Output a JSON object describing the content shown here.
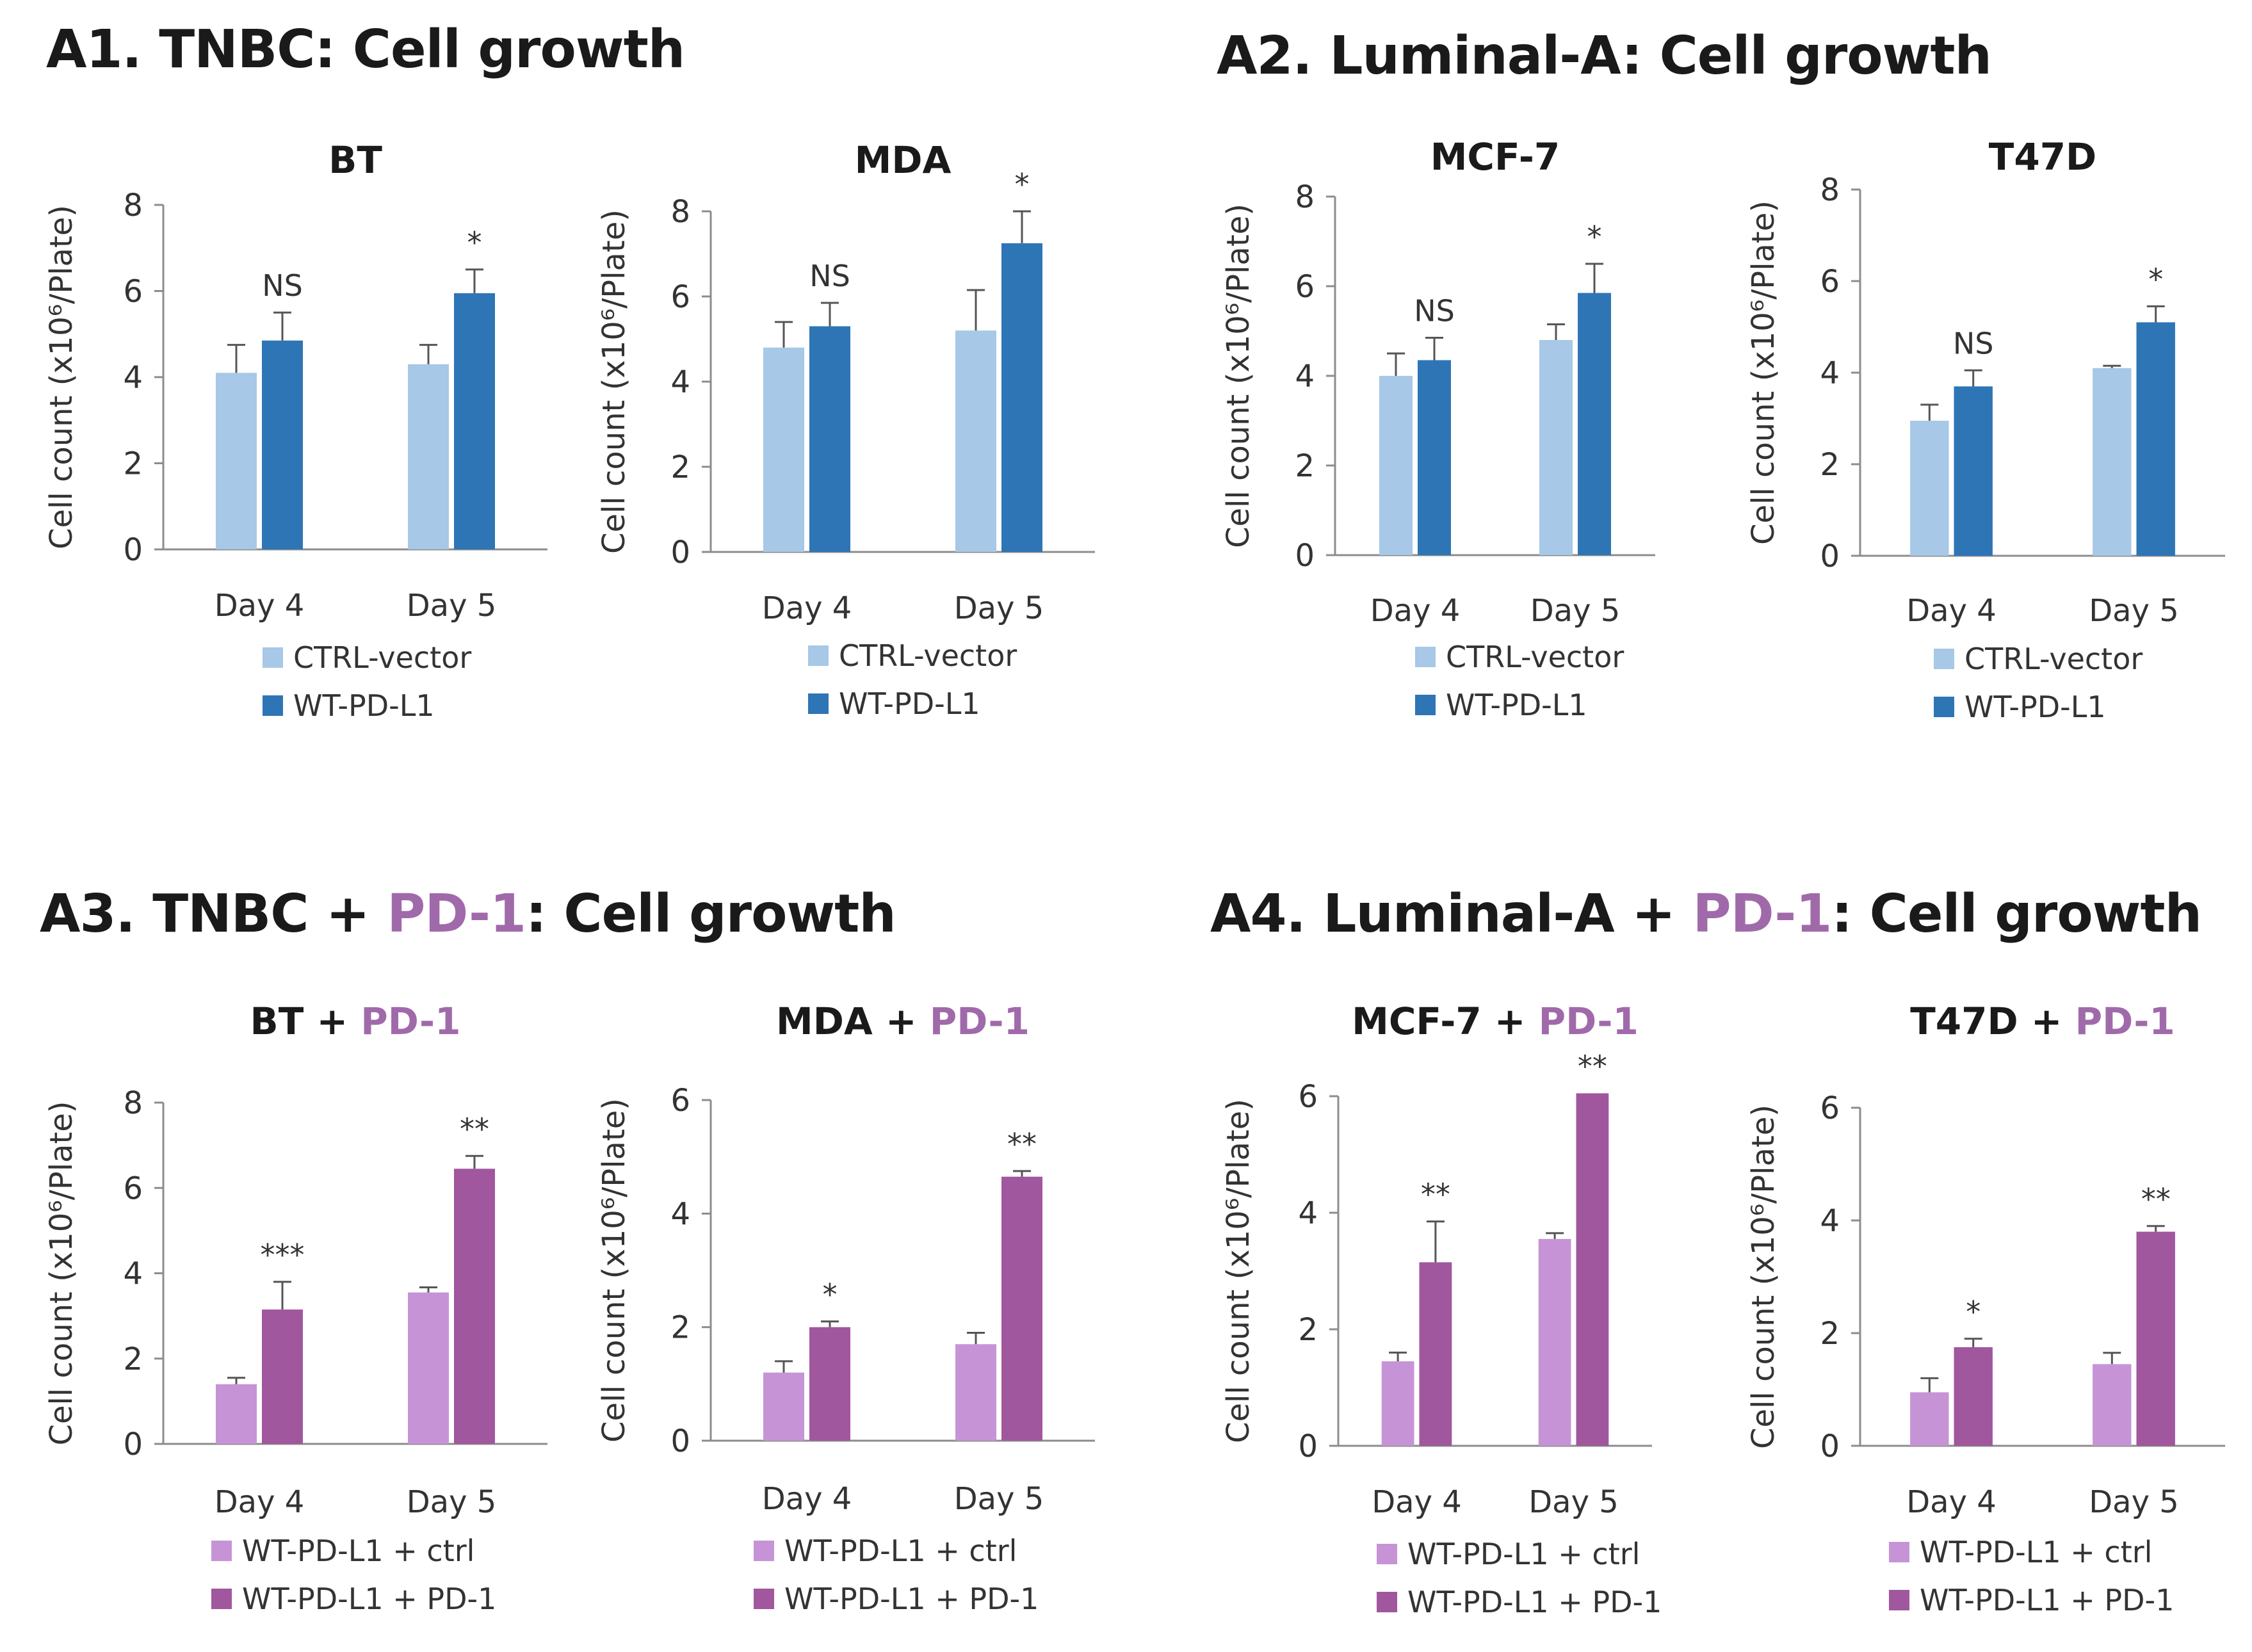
{
  "panels": [
    {
      "id": "A1",
      "title_prefix": "A1. TNBC",
      "title_accent": "",
      "title_suffix": ": Cell growth"
    },
    {
      "id": "A2",
      "title_prefix": "A2. Luminal-A",
      "title_accent": "",
      "title_suffix": ": Cell growth"
    },
    {
      "id": "A3",
      "title_prefix": "A3. TNBC + ",
      "title_accent": "PD-1",
      "title_suffix": ": Cell growth"
    },
    {
      "id": "A4",
      "title_prefix": "A4. Luminal-A + ",
      "title_accent": "PD-1",
      "title_suffix": ": Cell growth"
    }
  ],
  "colors": {
    "ctrl_vector": "#a7c8e6",
    "wt_pdl1": "#2e75b6",
    "pd1_ctrl": "#c694d6",
    "pd1": "#a0579e",
    "accent_text": "#a06aaa"
  },
  "chart_data": [
    {
      "type": "bar",
      "panel": "A1",
      "title": "BT",
      "title_accent": "",
      "ylabel": "Cell count (x10⁶/Plate)",
      "categories": [
        "Day 4",
        "Day 5"
      ],
      "ylim": [
        0,
        8
      ],
      "yticks": [
        0,
        2,
        4,
        6,
        8
      ],
      "series": [
        {
          "name": "CTRL-vector",
          "color": "#a7c8e6",
          "values": [
            4.1,
            4.3
          ],
          "errors": [
            0.65,
            0.45
          ]
        },
        {
          "name": "WT-PD-L1",
          "color": "#2e75b6",
          "values": [
            4.85,
            5.95
          ],
          "errors": [
            0.65,
            0.55
          ]
        }
      ],
      "annotations": [
        "NS",
        "*"
      ]
    },
    {
      "type": "bar",
      "panel": "A1",
      "title": "MDA",
      "title_accent": "",
      "ylabel": "Cell count (x10⁶/Plate)",
      "categories": [
        "Day 4",
        "Day 5"
      ],
      "ylim": [
        0,
        8
      ],
      "yticks": [
        0,
        2,
        4,
        6,
        8
      ],
      "series": [
        {
          "name": "CTRL-vector",
          "color": "#a7c8e6",
          "values": [
            4.8,
            5.2
          ],
          "errors": [
            0.6,
            0.95
          ]
        },
        {
          "name": "WT-PD-L1",
          "color": "#2e75b6",
          "values": [
            5.3,
            7.25
          ],
          "errors": [
            0.55,
            0.75
          ]
        }
      ],
      "annotations": [
        "NS",
        "*"
      ]
    },
    {
      "type": "bar",
      "panel": "A2",
      "title": "MCF-7",
      "title_accent": "",
      "ylabel": "Cell count (x10⁶/Plate)",
      "categories": [
        "Day 4",
        "Day 5"
      ],
      "ylim": [
        0,
        8
      ],
      "yticks": [
        0,
        2,
        4,
        6,
        8
      ],
      "series": [
        {
          "name": "CTRL-vector",
          "color": "#a7c8e6",
          "values": [
            4.0,
            4.8
          ],
          "errors": [
            0.5,
            0.35
          ]
        },
        {
          "name": "WT-PD-L1",
          "color": "#2e75b6",
          "values": [
            4.35,
            5.85
          ],
          "errors": [
            0.5,
            0.65
          ]
        }
      ],
      "annotations": [
        "NS",
        "*"
      ]
    },
    {
      "type": "bar",
      "panel": "A2",
      "title": "T47D",
      "title_accent": "",
      "ylabel": "Cell count (x10⁶/Plate)",
      "categories": [
        "Day 4",
        "Day 5"
      ],
      "ylim": [
        0,
        8
      ],
      "yticks": [
        0,
        2,
        4,
        6,
        8
      ],
      "series": [
        {
          "name": "CTRL-vector",
          "color": "#a7c8e6",
          "values": [
            2.95,
            4.1
          ],
          "errors": [
            0.35,
            0.05
          ]
        },
        {
          "name": "WT-PD-L1",
          "color": "#2e75b6",
          "values": [
            3.7,
            5.1
          ],
          "errors": [
            0.35,
            0.35
          ]
        }
      ],
      "annotations": [
        "NS",
        "*"
      ]
    },
    {
      "type": "bar",
      "panel": "A3",
      "title": "BT + ",
      "title_accent": "PD-1",
      "ylabel": "Cell count (x10⁶/Plate)",
      "categories": [
        "Day 4",
        "Day 5"
      ],
      "ylim": [
        0,
        8
      ],
      "yticks": [
        0,
        2,
        4,
        6,
        8
      ],
      "series": [
        {
          "name": "WT-PD-L1 + ctrl",
          "color": "#c694d6",
          "values": [
            1.4,
            3.55
          ],
          "errors": [
            0.15,
            0.12
          ]
        },
        {
          "name": "WT-PD-L1 + PD-1",
          "color": "#a0579e",
          "values": [
            3.15,
            6.45
          ],
          "errors": [
            0.65,
            0.3
          ]
        }
      ],
      "annotations": [
        "***",
        "**"
      ]
    },
    {
      "type": "bar",
      "panel": "A3",
      "title": "MDA + ",
      "title_accent": "PD-1",
      "ylabel": "Cell count (x10⁶/Plate)",
      "categories": [
        "Day 4",
        "Day 5"
      ],
      "ylim": [
        0,
        6
      ],
      "yticks": [
        0,
        2,
        4,
        6
      ],
      "series": [
        {
          "name": "WT-PD-L1 + ctrl",
          "color": "#c694d6",
          "values": [
            1.2,
            1.7
          ],
          "errors": [
            0.2,
            0.2
          ]
        },
        {
          "name": "WT-PD-L1 + PD-1",
          "color": "#a0579e",
          "values": [
            2.0,
            4.65
          ],
          "errors": [
            0.1,
            0.1
          ]
        }
      ],
      "annotations": [
        "*",
        "**"
      ]
    },
    {
      "type": "bar",
      "panel": "A4",
      "title": "MCF-7 + ",
      "title_accent": "PD-1",
      "ylabel": "Cell count (x10⁶/Plate)",
      "categories": [
        "Day 4",
        "Day 5"
      ],
      "ylim": [
        0,
        6
      ],
      "yticks": [
        0,
        2,
        4,
        6
      ],
      "series": [
        {
          "name": "WT-PD-L1 + ctrl",
          "color": "#c694d6",
          "values": [
            1.45,
            3.55
          ],
          "errors": [
            0.15,
            0.1
          ]
        },
        {
          "name": "WT-PD-L1 + PD-1",
          "color": "#a0579e",
          "values": [
            3.15,
            6.05
          ],
          "errors": [
            0.7,
            0.0
          ]
        }
      ],
      "annotations": [
        "**",
        "**"
      ]
    },
    {
      "type": "bar",
      "panel": "A4",
      "title": "T47D + ",
      "title_accent": "PD-1",
      "ylabel": "Cell count (x10⁶/Plate)",
      "categories": [
        "Day 4",
        "Day 5"
      ],
      "ylim": [
        0,
        6
      ],
      "yticks": [
        0,
        2,
        4,
        6
      ],
      "series": [
        {
          "name": "WT-PD-L1 + ctrl",
          "color": "#c694d6",
          "values": [
            0.95,
            1.45
          ],
          "errors": [
            0.25,
            0.2
          ]
        },
        {
          "name": "WT-PD-L1 + PD-1",
          "color": "#a0579e",
          "values": [
            1.75,
            3.8
          ],
          "errors": [
            0.15,
            0.1
          ]
        }
      ],
      "annotations": [
        "*",
        "**"
      ]
    }
  ]
}
